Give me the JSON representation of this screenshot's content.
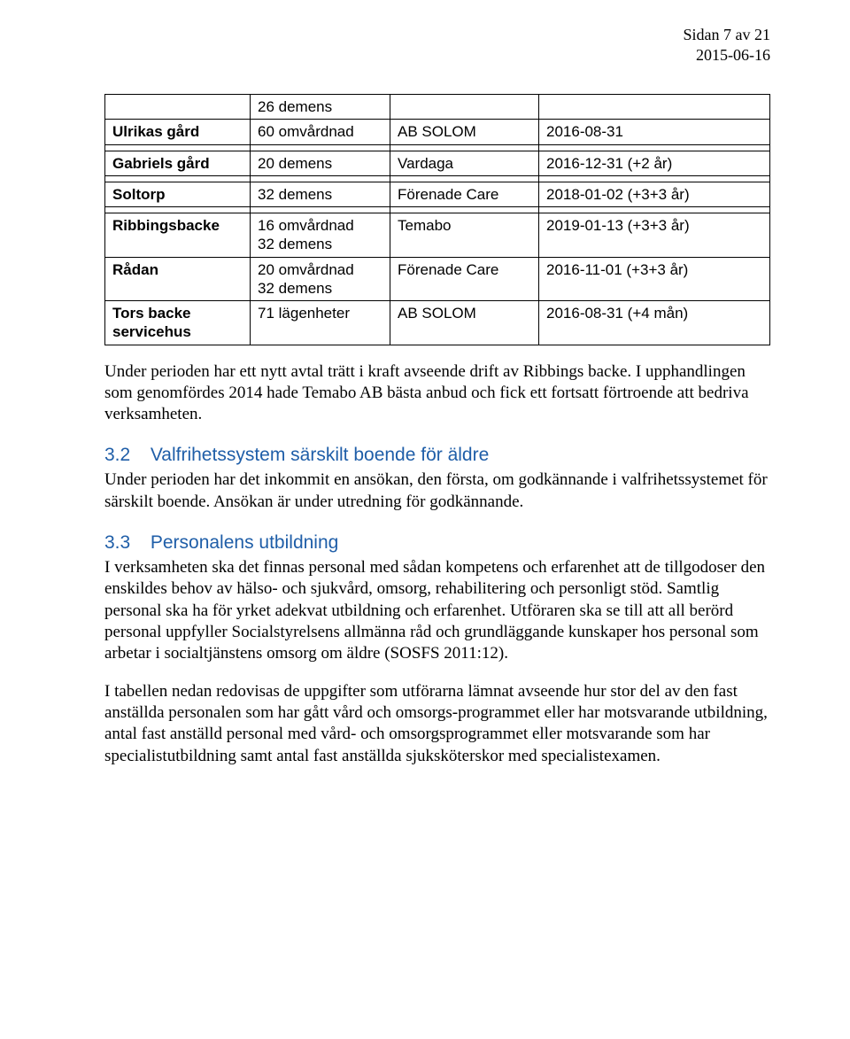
{
  "header": {
    "page_label": "Sidan 7 av 21",
    "date": "2015-06-16"
  },
  "table": {
    "rows": [
      {
        "c0": "",
        "c1": "26 demens",
        "c2": "",
        "c3": ""
      },
      {
        "c0": "Ulrikas gård",
        "c1": "60 omvårdnad",
        "c2": "AB SOLOM",
        "c3": "2016-08-31"
      },
      {
        "gap": true
      },
      {
        "c0": "Gabriels gård",
        "c1": "20 demens",
        "c2": "Vardaga",
        "c3": "2016-12-31 (+2 år)"
      },
      {
        "gap": true
      },
      {
        "c0": "Soltorp",
        "c1": "32 demens",
        "c2": "Förenade Care",
        "c3": "2018-01-02 (+3+3 år)"
      },
      {
        "gap": true
      },
      {
        "c0": "Ribbingsbacke",
        "c1": "16 omvårdnad\n32 demens",
        "c2": "Temabo",
        "c3": "2019-01-13 (+3+3 år)"
      },
      {
        "c0": "Rådan",
        "c1": "20 omvårdnad\n32 demens",
        "c2": "Förenade Care",
        "c3": "2016-11-01 (+3+3 år)"
      },
      {
        "c0": "Tors backe\nservicehus",
        "c1": "71 lägenheter",
        "c2": "AB SOLOM",
        "c3": "2016-08-31 (+4 mån)"
      }
    ]
  },
  "paragraphs": {
    "p1": "Under perioden har ett nytt avtal trätt i kraft avseende drift av Ribbings backe. I upphandlingen som genomfördes 2014 hade Temabo AB bästa anbud och fick ett fortsatt förtroende att bedriva verksamheten.",
    "p2": "Under perioden har det inkommit en ansökan, den första, om godkännande i valfrihetssystemet för särskilt boende. Ansökan är under utredning för godkännande.",
    "p3": "I verksamheten ska det finnas personal med sådan kompetens och erfarenhet att de tillgodoser den enskildes behov av hälso- och sjukvård, omsorg, rehabilitering och personligt stöd. Samtlig personal ska ha för yrket adekvat utbildning och erfarenhet. Utföraren ska se till att all berörd personal uppfyller Socialstyrelsens allmänna råd och grundläggande kunskaper hos personal som arbetar i socialtjänstens omsorg om äldre (SOSFS 2011:12).",
    "p4": "I tabellen nedan redovisas de uppgifter som utförarna lämnat avseende hur stor del av den fast anställda personalen som har gått vård och omsorgs-programmet eller har motsvarande utbildning, antal fast anställd personal med vård- och omsorgsprogrammet eller motsvarande som har specialistutbildning samt antal fast anställda sjuksköterskor med specialistexamen."
  },
  "sections": {
    "s32": {
      "num": "3.2",
      "title": "Valfrihetssystem särskilt boende för äldre"
    },
    "s33": {
      "num": "3.3",
      "title": "Personalens utbildning"
    }
  },
  "colors": {
    "heading": "#1f5ea8",
    "text": "#000000",
    "background": "#ffffff",
    "border": "#000000"
  }
}
